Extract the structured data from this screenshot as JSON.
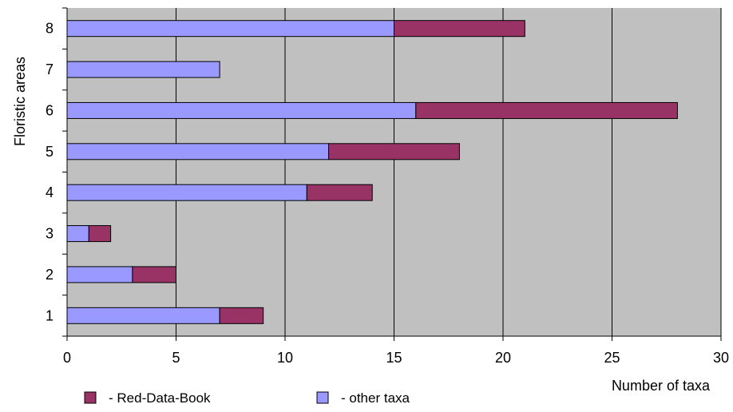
{
  "chart_data": {
    "type": "bar",
    "orientation": "horizontal",
    "stacked": true,
    "categories": [
      "1",
      "2",
      "3",
      "4",
      "5",
      "6",
      "7",
      "8"
    ],
    "series": [
      {
        "name": "- other taxa",
        "values": [
          7,
          3,
          1,
          11,
          12,
          16,
          7,
          15
        ],
        "color": "#9999ff"
      },
      {
        "name": "- Red-Data-Book",
        "values": [
          2,
          2,
          1,
          3,
          6,
          12,
          0,
          6
        ],
        "color": "#993366"
      }
    ],
    "xlabel": "Number of taxa",
    "ylabel": "Floristic areas",
    "xlim": [
      0,
      30
    ],
    "x_ticks": [
      "0",
      "5",
      "10",
      "15",
      "20",
      "25",
      "30"
    ],
    "plot_background": "#c0c0c0",
    "grid": "vertical",
    "legend": {
      "placement": "bottom",
      "order": [
        "- Red-Data-Book",
        "- other taxa"
      ]
    }
  }
}
